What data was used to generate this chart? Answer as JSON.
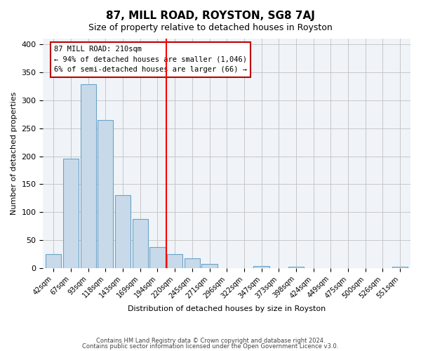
{
  "title": "87, MILL ROAD, ROYSTON, SG8 7AJ",
  "subtitle": "Size of property relative to detached houses in Royston",
  "xlabel": "Distribution of detached houses by size in Royston",
  "ylabel": "Number of detached properties",
  "bar_labels": [
    "42sqm",
    "67sqm",
    "93sqm",
    "118sqm",
    "143sqm",
    "169sqm",
    "194sqm",
    "220sqm",
    "245sqm",
    "271sqm",
    "296sqm",
    "322sqm",
    "347sqm",
    "373sqm",
    "398sqm",
    "424sqm",
    "449sqm",
    "475sqm",
    "500sqm",
    "526sqm",
    "551sqm"
  ],
  "bar_heights": [
    25,
    195,
    328,
    265,
    130,
    88,
    38,
    25,
    18,
    8,
    0,
    0,
    4,
    0,
    3,
    0,
    0,
    0,
    0,
    0,
    3
  ],
  "bar_color": "#c8daea",
  "bar_edge_color": "#6aa3c8",
  "highlight_bar_index": 7,
  "highlight_bar_color": "#c8daea",
  "vline_x": 7,
  "vline_color": "red",
  "annotation_title": "87 MILL ROAD: 210sqm",
  "annotation_line1": "← 94% of detached houses are smaller (1,046)",
  "annotation_line2": "6% of semi-detached houses are larger (66) →",
  "annotation_box_color": "#ffffff",
  "annotation_box_edge": "#c00000",
  "ylim": [
    0,
    410
  ],
  "yticks": [
    0,
    50,
    100,
    150,
    200,
    250,
    300,
    350,
    400
  ],
  "footer1": "Contains HM Land Registry data © Crown copyright and database right 2024.",
  "footer2": "Contains public sector information licensed under the Open Government Licence v3.0."
}
